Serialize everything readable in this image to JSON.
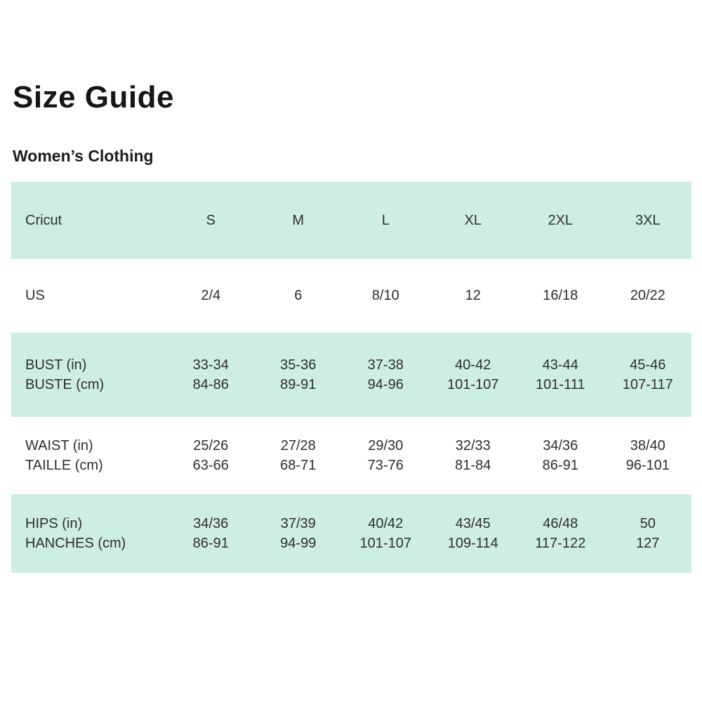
{
  "page": {
    "title": "Size Guide",
    "subtitle": "Women’s Clothing"
  },
  "table": {
    "band_color": "#cfeee3",
    "text_color": "#2e2e2e",
    "header": {
      "label": "Cricut",
      "sizes": [
        "S",
        "M",
        "L",
        "XL",
        "2XL",
        "3XL"
      ]
    },
    "rows": [
      {
        "name": "us",
        "shaded": false,
        "label_lines": [
          "US"
        ],
        "values": [
          [
            "2/4"
          ],
          [
            "6"
          ],
          [
            "8/10"
          ],
          [
            "12"
          ],
          [
            "16/18"
          ],
          [
            "20/22"
          ]
        ]
      },
      {
        "name": "bust",
        "shaded": true,
        "label_lines": [
          "BUST (in)",
          "BUSTE (cm)"
        ],
        "values": [
          [
            "33-34",
            "84-86"
          ],
          [
            "35-36",
            "89-91"
          ],
          [
            "37-38",
            "94-96"
          ],
          [
            "40-42",
            "101-107"
          ],
          [
            "43-44",
            "101-111"
          ],
          [
            "45-46",
            "107-117"
          ]
        ]
      },
      {
        "name": "waist",
        "shaded": false,
        "label_lines": [
          "WAIST (in)",
          "TAILLE (cm)"
        ],
        "values": [
          [
            "25/26",
            "63-66"
          ],
          [
            "27/28",
            "68-71"
          ],
          [
            "29/30",
            "73-76"
          ],
          [
            "32/33",
            "81-84"
          ],
          [
            "34/36",
            "86-91"
          ],
          [
            "38/40",
            "96-101"
          ]
        ]
      },
      {
        "name": "hips",
        "shaded": true,
        "label_lines": [
          "HIPS (in)",
          "HANCHES (cm)"
        ],
        "values": [
          [
            "34/36",
            "86-91"
          ],
          [
            "37/39",
            "94-99"
          ],
          [
            "40/42",
            "101-107"
          ],
          [
            "43/45",
            "109-114"
          ],
          [
            "46/48",
            "117-122"
          ],
          [
            "50",
            "127"
          ]
        ]
      }
    ]
  }
}
